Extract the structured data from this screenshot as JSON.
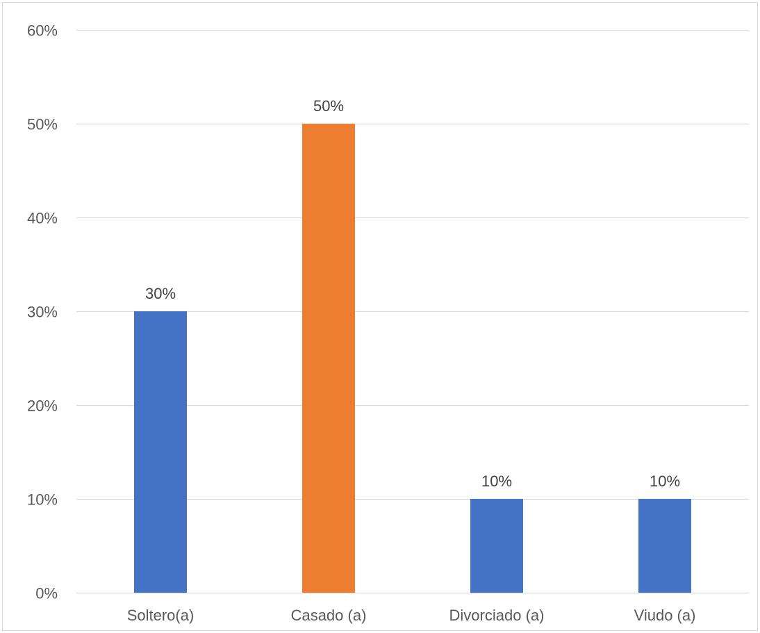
{
  "chart_data": {
    "type": "bar",
    "title": "",
    "xlabel": "",
    "ylabel": "",
    "categories": [
      "Soltero(a)",
      "Casado (a)",
      "Divorciado (a)",
      "Viudo (a)"
    ],
    "values": [
      30,
      50,
      10,
      10
    ],
    "value_unit": "%",
    "data_labels": [
      "30%",
      "50%",
      "10%",
      "10%"
    ],
    "bar_colors": [
      "#4472C4",
      "#ED7D31",
      "#4472C4",
      "#4472C4"
    ],
    "ylim": [
      0,
      60
    ],
    "yticks": [
      0,
      10,
      20,
      30,
      40,
      50,
      60
    ],
    "ytick_labels": [
      "0%",
      "10%",
      "20%",
      "30%",
      "40%",
      "50%",
      "60%"
    ],
    "grid": true,
    "legend": "none"
  },
  "colors": {
    "gridline": "#d9d9d9",
    "axis_line": "#d9d9d9",
    "frame_border": "#d9d9d9"
  }
}
